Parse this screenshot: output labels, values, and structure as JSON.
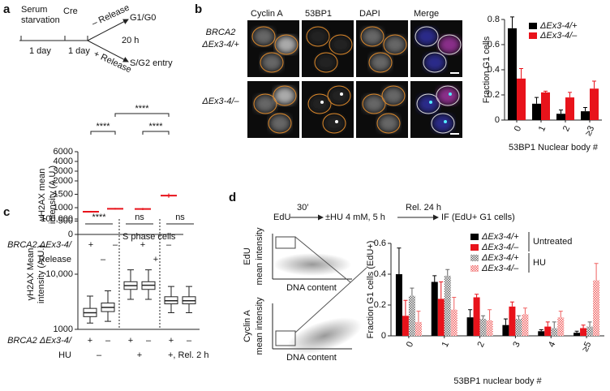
{
  "panel_labels": [
    "a",
    "b",
    "c",
    "d"
  ],
  "scheme_a": {
    "start": [
      "Serum",
      "starvation"
    ],
    "cre": "Cre",
    "durations": [
      "1 day",
      "1 day"
    ],
    "release_minus": "– Release",
    "g1": "G1/G0",
    "time": "20 h",
    "release_plus": "+ Release",
    "s": "S/G2 entry"
  },
  "images_b": {
    "columns": [
      "Cyclin A",
      "53BP1",
      "DAPI",
      "Merge"
    ],
    "rows": [
      [
        "BRCA2",
        "ΔEx3-4/+"
      ],
      [
        "ΔEx3-4/–"
      ]
    ]
  },
  "scheme_d": {
    "steps": [
      "EdU",
      "±HU 4 mM, 5 h",
      "IF (EdU+ G1 cells)"
    ],
    "arrows": [
      "30′",
      "Rel. 24 h"
    ],
    "plots": [
      {
        "ylabel": [
          "EdU",
          "mean intensity"
        ],
        "xlabel": "DNA content"
      },
      {
        "ylabel": [
          "Cyclin A",
          "mean intensity"
        ],
        "xlabel": "DNA content"
      }
    ]
  },
  "chart_data": [
    {
      "type": "dot",
      "ylabel": [
        "γH2AX mean",
        "intensity (A.U.)"
      ],
      "ylim": [
        0,
        6000
      ],
      "yticks": [
        0,
        500,
        1000,
        1500,
        2000,
        3000,
        4000,
        6000
      ],
      "y_break": 2000,
      "values": [
        850,
        960,
        950,
        1450
      ],
      "errors": [
        30,
        30,
        40,
        80
      ],
      "color": "#e8131b",
      "rows": [
        {
          "label": "BRCA2 ΔEx3-4/",
          "values": [
            "+",
            "–",
            "+",
            "–"
          ]
        },
        {
          "label": "Release",
          "groups": [
            "–",
            "+"
          ]
        }
      ],
      "significance": [
        {
          "label": "****",
          "from": 0,
          "to": 1
        },
        {
          "label": "****",
          "from": 1,
          "to": 3
        },
        {
          "label": "****",
          "from": 2,
          "to": 3
        }
      ]
    },
    {
      "type": "bar",
      "ylabel": "Fraction G1 cells",
      "xlabel": "53BP1 Nuclear body #",
      "categories": [
        "0",
        "1",
        "2",
        "≥3"
      ],
      "ylim": [
        0,
        0.8
      ],
      "yticks": [
        0,
        0.2,
        0.4,
        0.6,
        0.8
      ],
      "legend": "top-right",
      "series": [
        {
          "name": "ΔEx3-4/+",
          "color": "#000000",
          "pattern": "solid",
          "values": [
            0.73,
            0.13,
            0.05,
            0.07
          ],
          "errors": [
            0.09,
            0.05,
            0.03,
            0.03
          ]
        },
        {
          "name": "ΔEx3-4/–",
          "color": "#e8131b",
          "pattern": "solid",
          "values": [
            0.33,
            0.22,
            0.18,
            0.25
          ],
          "errors": [
            0.08,
            0.01,
            0.04,
            0.06
          ]
        }
      ]
    },
    {
      "type": "box",
      "log_scale": true,
      "ylabel": [
        "γH2AX Mean",
        "intensity (A.U.)"
      ],
      "ylim": [
        1000,
        100000
      ],
      "yticks": [
        1000,
        {
          "value": 10000,
          "label": "10,000"
        },
        {
          "value": 100000,
          "label": "100,000"
        }
      ],
      "boxes": [
        {
          "whislo": 1300,
          "q1": 1700,
          "med": 2000,
          "q3": 2400,
          "whishi": 4000
        },
        {
          "whislo": 1400,
          "q1": 2100,
          "med": 2500,
          "q3": 3000,
          "whishi": 5000
        },
        {
          "whislo": 3500,
          "q1": 5300,
          "med": 6200,
          "q3": 7300,
          "whishi": 12000
        },
        {
          "whislo": 3500,
          "q1": 5300,
          "med": 6300,
          "q3": 7300,
          "whishi": 12000
        },
        {
          "whislo": 2000,
          "q1": 2900,
          "med": 3300,
          "q3": 3900,
          "whishi": 6000
        },
        {
          "whislo": 2000,
          "q1": 2900,
          "med": 3300,
          "q3": 3900,
          "whishi": 6000
        }
      ],
      "rows": [
        {
          "label": "BRCA2 ΔEx3-4/",
          "values": [
            "+",
            "–",
            "+",
            "–",
            "+",
            "–"
          ]
        },
        {
          "label": "HU",
          "groups": [
            "–",
            "+",
            "+, Rel. 2 h"
          ]
        }
      ],
      "significance": [
        "****",
        "ns",
        "ns"
      ],
      "annotation": "S phase cells"
    },
    {
      "type": "bar",
      "ylabel": "Fraction G1 cells (EdU+)",
      "xlabel": "53BP1 nuclear body #",
      "categories": [
        "0",
        "1",
        "2",
        "3",
        "4",
        "≥5"
      ],
      "ylim": [
        0,
        0.6
      ],
      "yticks": [
        0,
        0.2,
        0.4,
        0.6
      ],
      "legend": "top-right",
      "legend_groups": [
        "Untreated",
        "HU"
      ],
      "series": [
        {
          "name": "ΔEx3-4/+",
          "color": "#000000",
          "pattern": "solid",
          "values": [
            0.4,
            0.35,
            0.12,
            0.07,
            0.03,
            0.02
          ],
          "errors": [
            0.17,
            0.04,
            0.05,
            0.04,
            0.01,
            0.01
          ]
        },
        {
          "name": "ΔEx3-4/–",
          "color": "#e8131b",
          "pattern": "solid",
          "values": [
            0.13,
            0.24,
            0.25,
            0.19,
            0.06,
            0.05
          ],
          "errors": [
            0.1,
            0.11,
            0.02,
            0.03,
            0.03,
            0.02
          ]
        },
        {
          "name": "ΔEx3-4/+",
          "color": "#666666",
          "pattern": "checker",
          "values": [
            0.26,
            0.39,
            0.11,
            0.11,
            0.05,
            0.06
          ],
          "errors": [
            0.05,
            0.04,
            0.02,
            0.02,
            0.04,
            0.03
          ]
        },
        {
          "name": "ΔEx3-4/–",
          "color": "#f06060",
          "pattern": "checker",
          "values": [
            0.09,
            0.17,
            0.1,
            0.14,
            0.12,
            0.36
          ],
          "errors": [
            0.07,
            0.08,
            0.07,
            0.04,
            0.04,
            0.11
          ]
        }
      ]
    }
  ]
}
